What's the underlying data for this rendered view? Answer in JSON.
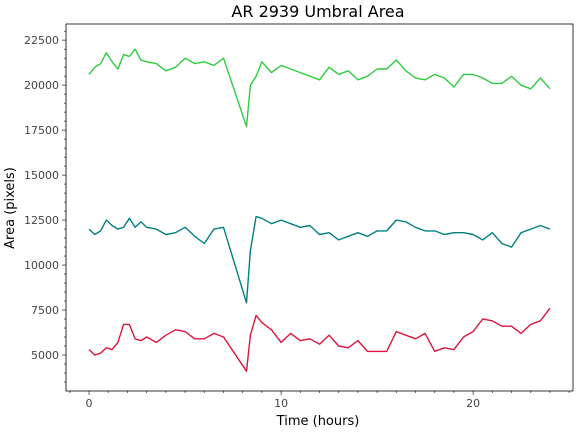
{
  "chart_data": {
    "type": "line",
    "title": "AR 2939 Umbral Area",
    "xlabel": "Time (hours)",
    "ylabel": "Area (pixels)",
    "xlim": [
      -1.2,
      25.2
    ],
    "ylim": [
      3000,
      23400
    ],
    "xticks": [
      0,
      10,
      20
    ],
    "yticks": [
      5000,
      7500,
      10000,
      12500,
      15000,
      17500,
      20000,
      22500
    ],
    "series": [
      {
        "color": "#2ecc40",
        "x": [
          0,
          0.3,
          0.6,
          0.9,
          1.2,
          1.5,
          1.8,
          2.1,
          2.4,
          2.7,
          3.0,
          3.5,
          4.0,
          4.5,
          5.0,
          5.5,
          6.0,
          6.5,
          7.0,
          8.2,
          8.4,
          8.7,
          9.0,
          9.5,
          10.0,
          10.5,
          11.0,
          11.5,
          12.0,
          12.5,
          13.0,
          13.5,
          14.0,
          14.5,
          15.0,
          15.5,
          16.0,
          16.5,
          17.0,
          17.5,
          18.0,
          18.5,
          19.0,
          19.5,
          20.0,
          20.5,
          21.0,
          21.5,
          22.0,
          22.5,
          23.0,
          23.5,
          24.0
        ],
        "y": [
          20600,
          21000,
          21200,
          21800,
          21300,
          20900,
          21700,
          21600,
          22000,
          21400,
          21300,
          21200,
          20800,
          21000,
          21500,
          21200,
          21300,
          21100,
          21500,
          17700,
          20000,
          20500,
          21300,
          20700,
          21100,
          20900,
          20700,
          20500,
          20300,
          21000,
          20600,
          20800,
          20300,
          20500,
          20900,
          20900,
          21400,
          20800,
          20400,
          20300,
          20600,
          20400,
          19900,
          20600,
          20600,
          20400,
          20100,
          20100,
          20500,
          20000,
          19800,
          20400,
          19800
        ]
      },
      {
        "color": "#008080",
        "x": [
          0,
          0.3,
          0.6,
          0.9,
          1.2,
          1.5,
          1.8,
          2.1,
          2.4,
          2.7,
          3.0,
          3.5,
          4.0,
          4.5,
          5.0,
          5.5,
          6.0,
          6.5,
          7.0,
          8.2,
          8.4,
          8.7,
          9.0,
          9.5,
          10.0,
          10.5,
          11.0,
          11.5,
          12.0,
          12.5,
          13.0,
          13.5,
          14.0,
          14.5,
          15.0,
          15.5,
          16.0,
          16.5,
          17.0,
          17.5,
          18.0,
          18.5,
          19.0,
          19.5,
          20.0,
          20.5,
          21.0,
          21.5,
          22.0,
          22.5,
          23.0,
          23.5,
          24.0
        ],
        "y": [
          12000,
          11700,
          11900,
          12500,
          12200,
          12000,
          12100,
          12600,
          12100,
          12400,
          12100,
          12000,
          11700,
          11800,
          12100,
          11600,
          11200,
          12000,
          12100,
          7900,
          10800,
          12700,
          12600,
          12300,
          12500,
          12300,
          12100,
          12200,
          11700,
          11800,
          11400,
          11600,
          11800,
          11600,
          11900,
          11900,
          12500,
          12400,
          12100,
          11900,
          11900,
          11700,
          11800,
          11800,
          11700,
          11400,
          11800,
          11200,
          11000,
          11800,
          12000,
          12200,
          12000
        ]
      },
      {
        "color": "#dc143c",
        "x": [
          0,
          0.3,
          0.6,
          0.9,
          1.2,
          1.5,
          1.8,
          2.1,
          2.4,
          2.7,
          3.0,
          3.5,
          4.0,
          4.5,
          5.0,
          5.5,
          6.0,
          6.5,
          7.0,
          8.2,
          8.4,
          8.7,
          9.0,
          9.5,
          10.0,
          10.5,
          11.0,
          11.5,
          12.0,
          12.5,
          13.0,
          13.5,
          14.0,
          14.5,
          15.0,
          15.5,
          16.0,
          16.5,
          17.0,
          17.5,
          18.0,
          18.5,
          19.0,
          19.5,
          20.0,
          20.5,
          21.0,
          21.5,
          22.0,
          22.5,
          23.0,
          23.5,
          24.0
        ],
        "y": [
          5300,
          5000,
          5100,
          5400,
          5300,
          5700,
          6700,
          6700,
          5900,
          5800,
          6000,
          5700,
          6100,
          6400,
          6300,
          5900,
          5900,
          6200,
          6000,
          4100,
          6100,
          7200,
          6800,
          6400,
          5700,
          6200,
          5800,
          5900,
          5600,
          6100,
          5500,
          5400,
          5800,
          5200,
          5200,
          5200,
          6300,
          6100,
          5900,
          6200,
          5200,
          5400,
          5300,
          6000,
          6300,
          7000,
          6900,
          6600,
          6600,
          6200,
          6700,
          6900,
          7600
        ]
      }
    ]
  }
}
